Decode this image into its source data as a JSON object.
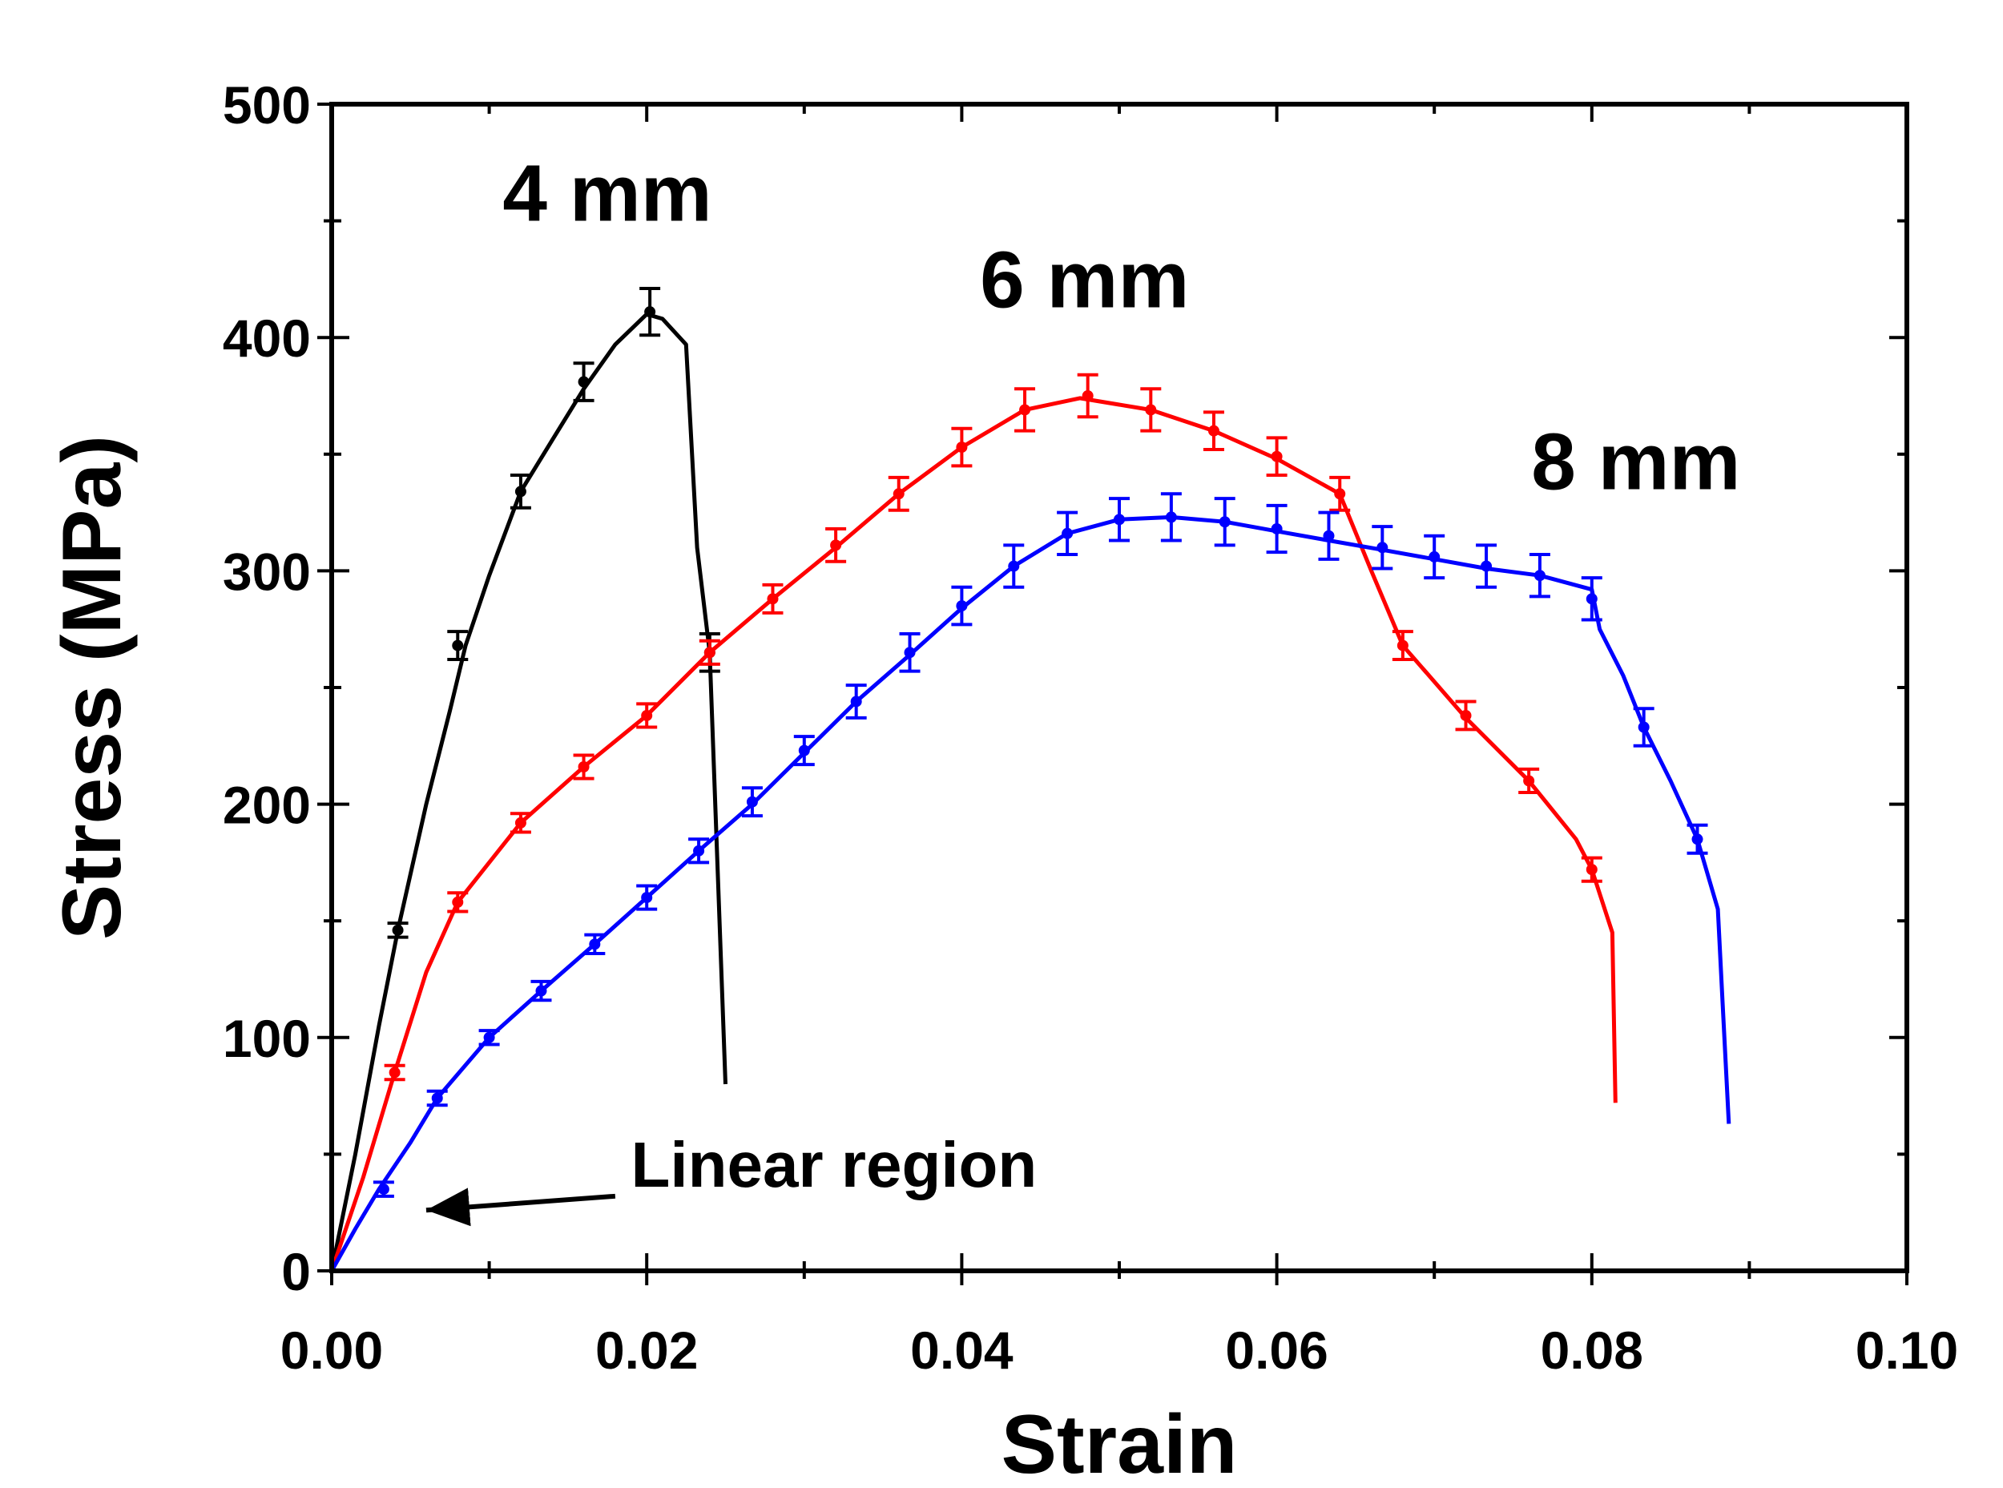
{
  "chart_data": {
    "type": "line",
    "xlabel": "Strain",
    "ylabel": "Stress (MPa)",
    "xlim": [
      0,
      0.1
    ],
    "ylim": [
      0,
      500
    ],
    "x_ticks": [
      0.0,
      0.02,
      0.04,
      0.06,
      0.08,
      0.1
    ],
    "x_tick_labels": [
      "0.00",
      "0.02",
      "0.04",
      "0.06",
      "0.08",
      "0.10"
    ],
    "y_ticks": [
      0,
      100,
      200,
      300,
      400,
      500
    ],
    "y_tick_labels": [
      "0",
      "100",
      "200",
      "300",
      "400",
      "500"
    ],
    "grid": false,
    "legend": "none",
    "series": [
      {
        "name": "4 mm",
        "color": "#000000",
        "label_text": "4 mm",
        "label_at": [
          0.0175,
          450
        ],
        "curve": [
          [
            0,
            0
          ],
          [
            0.0015,
            50
          ],
          [
            0.003,
            105
          ],
          [
            0.0042,
            146
          ],
          [
            0.006,
            200
          ],
          [
            0.0075,
            240
          ],
          [
            0.0085,
            268
          ],
          [
            0.01,
            298
          ],
          [
            0.012,
            334
          ],
          [
            0.014,
            356
          ],
          [
            0.016,
            378
          ],
          [
            0.018,
            397
          ],
          [
            0.02,
            410
          ],
          [
            0.021,
            408
          ],
          [
            0.0225,
            397
          ],
          [
            0.0232,
            310
          ],
          [
            0.024,
            265
          ],
          [
            0.025,
            80
          ]
        ],
        "error_points": [
          {
            "x": 0.0042,
            "y": 146,
            "err": 3
          },
          {
            "x": 0.008,
            "y": 268,
            "err": 6
          },
          {
            "x": 0.012,
            "y": 334,
            "err": 7
          },
          {
            "x": 0.016,
            "y": 381,
            "err": 8
          },
          {
            "x": 0.0202,
            "y": 411,
            "err": 10
          },
          {
            "x": 0.024,
            "y": 265,
            "err": 8
          }
        ]
      },
      {
        "name": "6 mm",
        "color": "#ff0000",
        "label_text": "6 mm",
        "label_at": [
          0.0478,
          413
        ],
        "curve": [
          [
            0,
            0
          ],
          [
            0.002,
            40
          ],
          [
            0.004,
            85
          ],
          [
            0.006,
            128
          ],
          [
            0.008,
            158
          ],
          [
            0.012,
            192
          ],
          [
            0.016,
            216
          ],
          [
            0.02,
            238
          ],
          [
            0.024,
            265
          ],
          [
            0.028,
            288
          ],
          [
            0.032,
            310
          ],
          [
            0.036,
            333
          ],
          [
            0.04,
            353
          ],
          [
            0.044,
            369
          ],
          [
            0.0475,
            374
          ],
          [
            0.052,
            369
          ],
          [
            0.056,
            360
          ],
          [
            0.06,
            348
          ],
          [
            0.064,
            333
          ],
          [
            0.066,
            300
          ],
          [
            0.068,
            268
          ],
          [
            0.072,
            237
          ],
          [
            0.076,
            210
          ],
          [
            0.079,
            185
          ],
          [
            0.08,
            172
          ],
          [
            0.0813,
            145
          ],
          [
            0.0815,
            72
          ]
        ],
        "error_points": [
          {
            "x": 0.004,
            "y": 85,
            "err": 3
          },
          {
            "x": 0.008,
            "y": 158,
            "err": 4
          },
          {
            "x": 0.012,
            "y": 192,
            "err": 4
          },
          {
            "x": 0.016,
            "y": 216,
            "err": 5
          },
          {
            "x": 0.02,
            "y": 238,
            "err": 5
          },
          {
            "x": 0.024,
            "y": 265,
            "err": 5
          },
          {
            "x": 0.028,
            "y": 288,
            "err": 6
          },
          {
            "x": 0.032,
            "y": 311,
            "err": 7
          },
          {
            "x": 0.036,
            "y": 333,
            "err": 7
          },
          {
            "x": 0.04,
            "y": 353,
            "err": 8
          },
          {
            "x": 0.044,
            "y": 369,
            "err": 9
          },
          {
            "x": 0.048,
            "y": 375,
            "err": 9
          },
          {
            "x": 0.052,
            "y": 369,
            "err": 9
          },
          {
            "x": 0.056,
            "y": 360,
            "err": 8
          },
          {
            "x": 0.06,
            "y": 349,
            "err": 8
          },
          {
            "x": 0.064,
            "y": 333,
            "err": 7
          },
          {
            "x": 0.068,
            "y": 268,
            "err": 6
          },
          {
            "x": 0.072,
            "y": 238,
            "err": 6
          },
          {
            "x": 0.076,
            "y": 210,
            "err": 5
          },
          {
            "x": 0.08,
            "y": 172,
            "err": 5
          }
        ]
      },
      {
        "name": "8 mm",
        "color": "#0000ff",
        "label_text": "8 mm",
        "label_at": [
          0.0828,
          335
        ],
        "curve": [
          [
            0,
            0
          ],
          [
            0.0015,
            18
          ],
          [
            0.003,
            35
          ],
          [
            0.005,
            55
          ],
          [
            0.0067,
            74
          ],
          [
            0.01,
            100
          ],
          [
            0.0133,
            120
          ],
          [
            0.0167,
            140
          ],
          [
            0.02,
            160
          ],
          [
            0.0233,
            180
          ],
          [
            0.0267,
            200
          ],
          [
            0.03,
            222
          ],
          [
            0.0333,
            244
          ],
          [
            0.0367,
            264
          ],
          [
            0.04,
            284
          ],
          [
            0.0433,
            302
          ],
          [
            0.0467,
            316
          ],
          [
            0.05,
            322
          ],
          [
            0.0533,
            323
          ],
          [
            0.0567,
            321
          ],
          [
            0.06,
            317
          ],
          [
            0.0633,
            313
          ],
          [
            0.0667,
            309
          ],
          [
            0.07,
            305
          ],
          [
            0.0733,
            301
          ],
          [
            0.0767,
            298
          ],
          [
            0.08,
            292
          ],
          [
            0.0805,
            275
          ],
          [
            0.082,
            255
          ],
          [
            0.0833,
            233
          ],
          [
            0.085,
            210
          ],
          [
            0.0867,
            185
          ],
          [
            0.088,
            155
          ],
          [
            0.0883,
            115
          ],
          [
            0.0887,
            63
          ]
        ],
        "error_points": [
          {
            "x": 0.0033,
            "y": 35,
            "err": 3
          },
          {
            "x": 0.0067,
            "y": 74,
            "err": 3
          },
          {
            "x": 0.01,
            "y": 100,
            "err": 3
          },
          {
            "x": 0.0133,
            "y": 120,
            "err": 4
          },
          {
            "x": 0.0167,
            "y": 140,
            "err": 4
          },
          {
            "x": 0.02,
            "y": 160,
            "err": 5
          },
          {
            "x": 0.0233,
            "y": 180,
            "err": 5
          },
          {
            "x": 0.0267,
            "y": 201,
            "err": 6
          },
          {
            "x": 0.03,
            "y": 223,
            "err": 6
          },
          {
            "x": 0.0333,
            "y": 244,
            "err": 7
          },
          {
            "x": 0.0367,
            "y": 265,
            "err": 8
          },
          {
            "x": 0.04,
            "y": 285,
            "err": 8
          },
          {
            "x": 0.0433,
            "y": 302,
            "err": 9
          },
          {
            "x": 0.0467,
            "y": 316,
            "err": 9
          },
          {
            "x": 0.05,
            "y": 322,
            "err": 9
          },
          {
            "x": 0.0533,
            "y": 323,
            "err": 10
          },
          {
            "x": 0.0567,
            "y": 321,
            "err": 10
          },
          {
            "x": 0.06,
            "y": 318,
            "err": 10
          },
          {
            "x": 0.0633,
            "y": 315,
            "err": 10
          },
          {
            "x": 0.0667,
            "y": 310,
            "err": 9
          },
          {
            "x": 0.07,
            "y": 306,
            "err": 9
          },
          {
            "x": 0.0733,
            "y": 302,
            "err": 9
          },
          {
            "x": 0.0767,
            "y": 298,
            "err": 9
          },
          {
            "x": 0.08,
            "y": 288,
            "err": 9
          },
          {
            "x": 0.0833,
            "y": 233,
            "err": 8
          },
          {
            "x": 0.0867,
            "y": 185,
            "err": 6
          }
        ]
      }
    ],
    "annotations": [
      {
        "text": "Linear region",
        "text_at": [
          0.019,
          36
        ],
        "arrow_from": [
          0.018,
          32
        ],
        "arrow_to": [
          0.006,
          26
        ]
      }
    ]
  }
}
